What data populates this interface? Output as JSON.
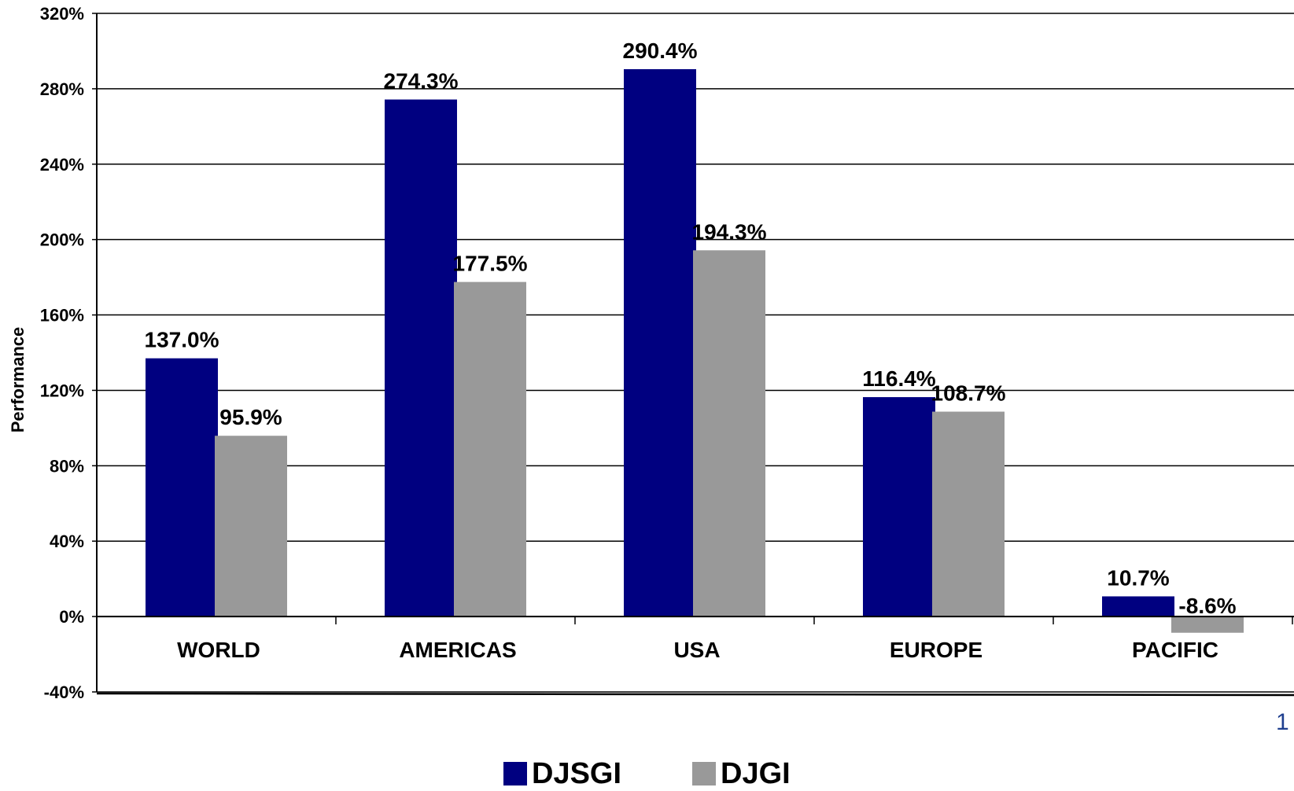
{
  "chart_data": {
    "type": "bar",
    "categories": [
      "WORLD",
      "AMERICAS",
      "USA",
      "EUROPE",
      "PACIFIC"
    ],
    "series": [
      {
        "name": "DJSGI",
        "color": "#000080",
        "values": [
          137.0,
          274.3,
          290.4,
          116.4,
          10.7
        ],
        "labels": [
          "137.0%",
          "274.3%",
          "290.4%",
          "116.4%",
          "10.7%"
        ]
      },
      {
        "name": "DJGI",
        "color": "#999999",
        "values": [
          95.9,
          177.5,
          194.3,
          108.7,
          -8.6
        ],
        "labels": [
          "95.9%",
          "177.5%",
          "194.3%",
          "108.7%",
          "-8.6%"
        ]
      }
    ],
    "ylabel": "Performance",
    "ylim": [
      -40,
      320
    ],
    "yticks": [
      -40,
      0,
      40,
      80,
      120,
      160,
      200,
      240,
      280,
      320
    ],
    "ytick_labels": [
      "-40%",
      "0%",
      "40%",
      "80%",
      "120%",
      "160%",
      "200%",
      "240%",
      "280%",
      "320%"
    ],
    "grid": true,
    "legend_position": "bottom"
  },
  "page_number": "1"
}
